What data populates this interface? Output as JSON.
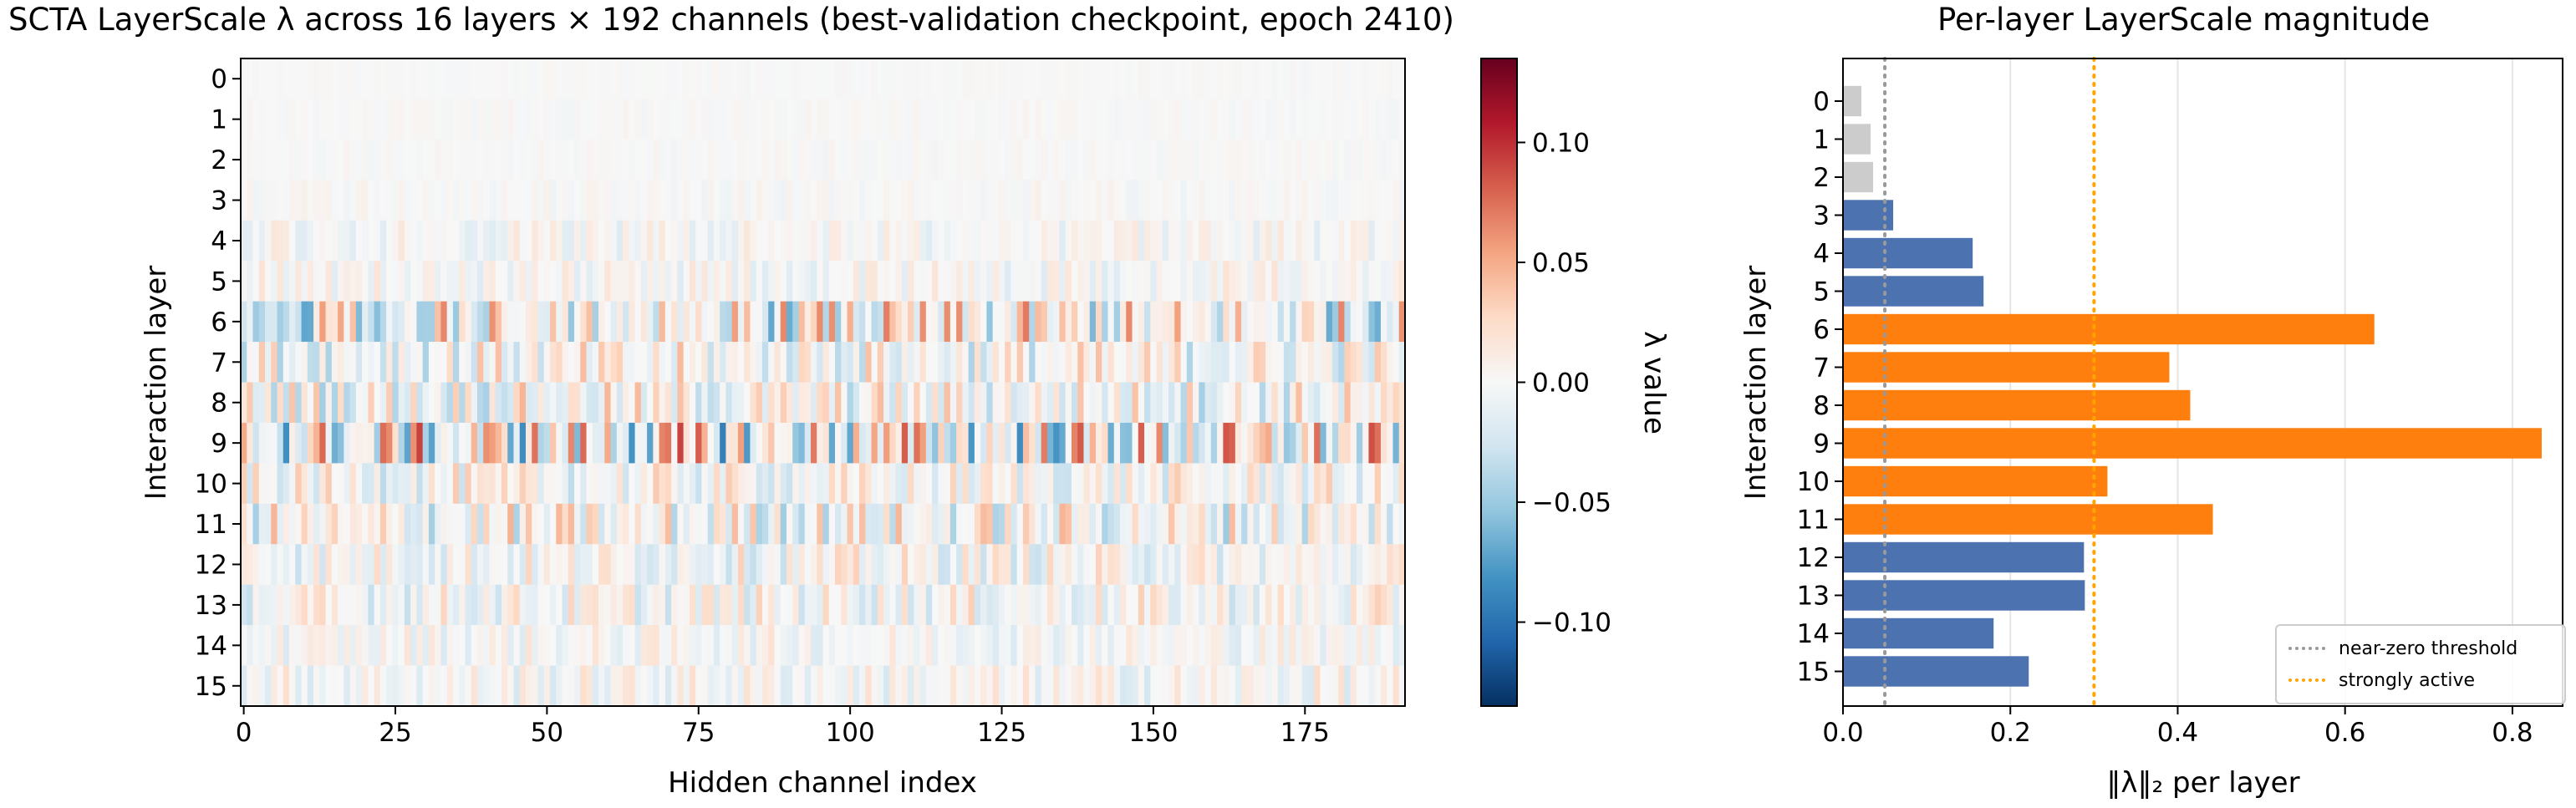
{
  "chart_data": [
    {
      "type": "heatmap",
      "title": "SCTA LayerScale λ across 16 layers × 192 channels (best-validation checkpoint, epoch 2410)",
      "xlabel": "Hidden channel index",
      "ylabel": "Interaction layer",
      "rows": [
        "0",
        "1",
        "2",
        "3",
        "4",
        "5",
        "6",
        "7",
        "8",
        "9",
        "10",
        "11",
        "12",
        "13",
        "14",
        "15"
      ],
      "n_channels": 192,
      "xticks": [
        "0",
        "25",
        "50",
        "75",
        "100",
        "125",
        "150",
        "175"
      ],
      "colorbar": {
        "label": "λ value",
        "ticks": [
          "0.10",
          "0.05",
          "0.00",
          "−0.05",
          "−0.10"
        ],
        "range": [
          -0.135,
          0.135
        ],
        "colormap": "RdBu_r"
      },
      "row_magnitude": [
        0.022,
        0.033,
        0.036,
        0.06,
        0.155,
        0.168,
        0.635,
        0.39,
        0.415,
        0.835,
        0.316,
        0.442,
        0.288,
        0.289,
        0.18,
        0.222
      ]
    },
    {
      "type": "bar",
      "orientation": "horizontal",
      "title": "Per-layer LayerScale magnitude",
      "xlabel": "‖λ‖₂ per layer",
      "ylabel": "Interaction layer",
      "categories": [
        "0",
        "1",
        "2",
        "3",
        "4",
        "5",
        "6",
        "7",
        "8",
        "9",
        "10",
        "11",
        "12",
        "13",
        "14",
        "15"
      ],
      "values": [
        0.022,
        0.033,
        0.036,
        0.06,
        0.155,
        0.168,
        0.635,
        0.39,
        0.415,
        0.835,
        0.316,
        0.442,
        0.288,
        0.289,
        0.18,
        0.222
      ],
      "xlim": [
        0,
        0.86
      ],
      "xticks": [
        "0.0",
        "0.2",
        "0.4",
        "0.6",
        "0.8"
      ],
      "grid": "x",
      "colors": {
        "near_zero": "#cccccc",
        "moderate": "#4c72b0",
        "strongly_active": "#ff7f0e"
      },
      "thresholds": [
        {
          "label": "near-zero threshold",
          "value": 0.05,
          "color": "#999999"
        },
        {
          "label": "strongly active",
          "value": 0.3,
          "color": "#ffa500"
        }
      ],
      "legend": "lower-right"
    }
  ]
}
